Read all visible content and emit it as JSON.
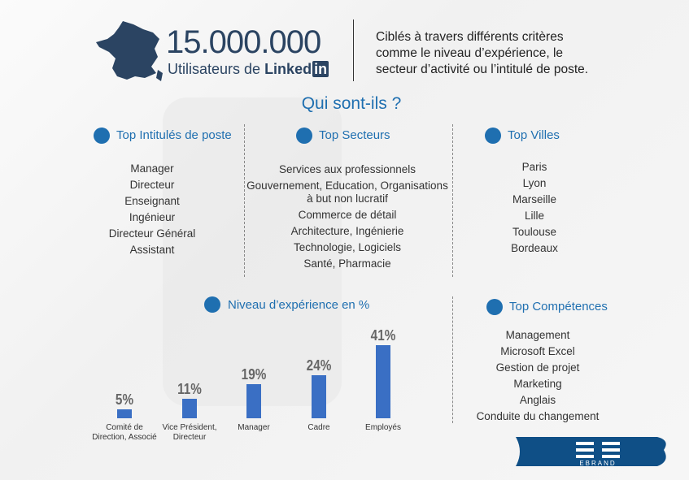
{
  "header": {
    "number": "15.000.000",
    "subtitle": "Utilisateurs de",
    "brand": "Linked",
    "brand_badge": "in",
    "description": [
      "Ciblés à travers différents critères",
      "comme le niveau d’expérience, le",
      "secteur d’activité ou l’intitulé de poste."
    ]
  },
  "heading": "Qui sont-ils ?",
  "sections": [
    {
      "title": "Top Intitulés de poste",
      "items": [
        "Manager",
        "Directeur",
        "Enseignant",
        "Ingénieur",
        "Directeur Général",
        "Assistant"
      ]
    },
    {
      "title": "Top Secteurs",
      "items": [
        "Services aux professionnels",
        "Gouvernement, Education, Organisations à but non lucratif",
        "Commerce de détail",
        "Architecture, Ingénierie",
        "Technologie, Logiciels",
        "Santé, Pharmacie"
      ]
    },
    {
      "title": "Top Villes",
      "items": [
        "Paris",
        "Lyon",
        "Marseille",
        "Lille",
        "Toulouse",
        "Bordeaux"
      ]
    },
    {
      "title": "Top Compétences",
      "items": [
        "Management",
        "Microsoft Excel",
        "Gestion de projet",
        "Marketing",
        "Anglais",
        "Conduite du changement"
      ]
    }
  ],
  "chart_data": {
    "type": "bar",
    "title": "Niveau d’expérience en %",
    "categories": [
      "Comité de Direction, Associé",
      "Vice Président, Directeur",
      "Manager",
      "Cadre",
      "Employés"
    ],
    "values": [
      5,
      11,
      19,
      24,
      41
    ],
    "value_labels": [
      "5%",
      "11%",
      "19%",
      "24%",
      "41%"
    ],
    "color": "#3a6fc4"
  },
  "logo": "EBRAND"
}
